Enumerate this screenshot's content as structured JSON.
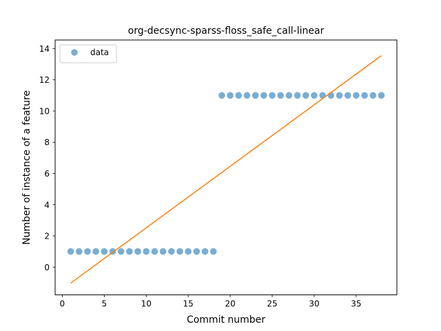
{
  "chart_data": {
    "type": "scatter",
    "title": "org-decsync-sparss-floss_safe_call-linear",
    "xlabel": "Commit number",
    "ylabel": "Number of instance of a feature",
    "xlim": [
      -0.85,
      39.85
    ],
    "ylim": [
      -1.78,
      14.55
    ],
    "xticks": [
      0,
      5,
      10,
      15,
      20,
      25,
      30,
      35
    ],
    "yticks": [
      0,
      2,
      4,
      6,
      8,
      10,
      12,
      14
    ],
    "grid": false,
    "legend_position": "top-left",
    "series": [
      {
        "name": "data",
        "kind": "scatter",
        "color": "#1f77b4",
        "x": [
          1,
          2,
          3,
          4,
          5,
          6,
          7,
          8,
          9,
          10,
          11,
          12,
          13,
          14,
          15,
          16,
          17,
          18,
          19,
          20,
          21,
          22,
          23,
          24,
          25,
          26,
          27,
          28,
          29,
          30,
          31,
          32,
          33,
          34,
          35,
          36,
          37,
          38
        ],
        "y": [
          1,
          1,
          1,
          1,
          1,
          1,
          1,
          1,
          1,
          1,
          1,
          1,
          1,
          1,
          1,
          1,
          1,
          1,
          11,
          11,
          11,
          11,
          11,
          11,
          11,
          11,
          11,
          11,
          11,
          11,
          11,
          11,
          11,
          11,
          11,
          11,
          11,
          11
        ]
      },
      {
        "kind": "line",
        "color": "#ff7f0e",
        "x": [
          1,
          38
        ],
        "y": [
          -1.03,
          13.55
        ]
      }
    ]
  }
}
